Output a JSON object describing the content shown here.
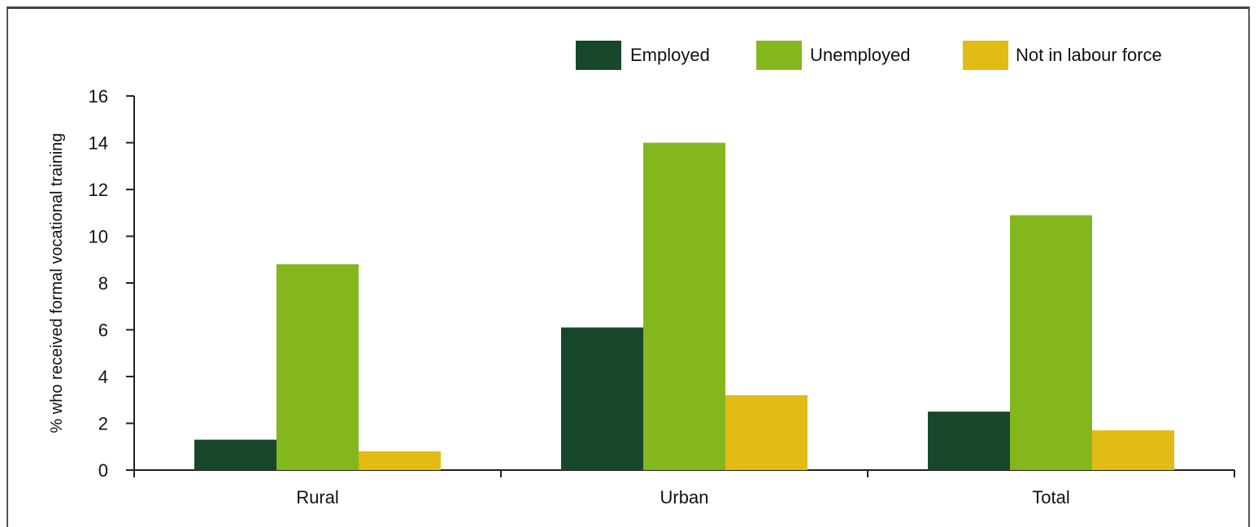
{
  "chart_data": {
    "type": "bar",
    "title": "",
    "xlabel": "",
    "ylabel": "% who received formal vocational training",
    "categories": [
      "Rural",
      "Urban",
      "Total"
    ],
    "series": [
      {
        "name": "Employed",
        "color": "#17472b",
        "values": [
          1.3,
          6.1,
          2.5
        ]
      },
      {
        "name": "Unemployed",
        "color": "#84b71e",
        "values": [
          8.8,
          14.0,
          10.9
        ]
      },
      {
        "name": "Not in labour force",
        "color": "#e2bb14",
        "values": [
          0.8,
          3.2,
          1.7
        ]
      }
    ],
    "ylim": [
      0,
      16
    ],
    "yticks": [
      "0",
      "2",
      "4",
      "6",
      "8",
      "10",
      "12",
      "14",
      "16"
    ],
    "grid": false,
    "legend_position": "top-right"
  }
}
